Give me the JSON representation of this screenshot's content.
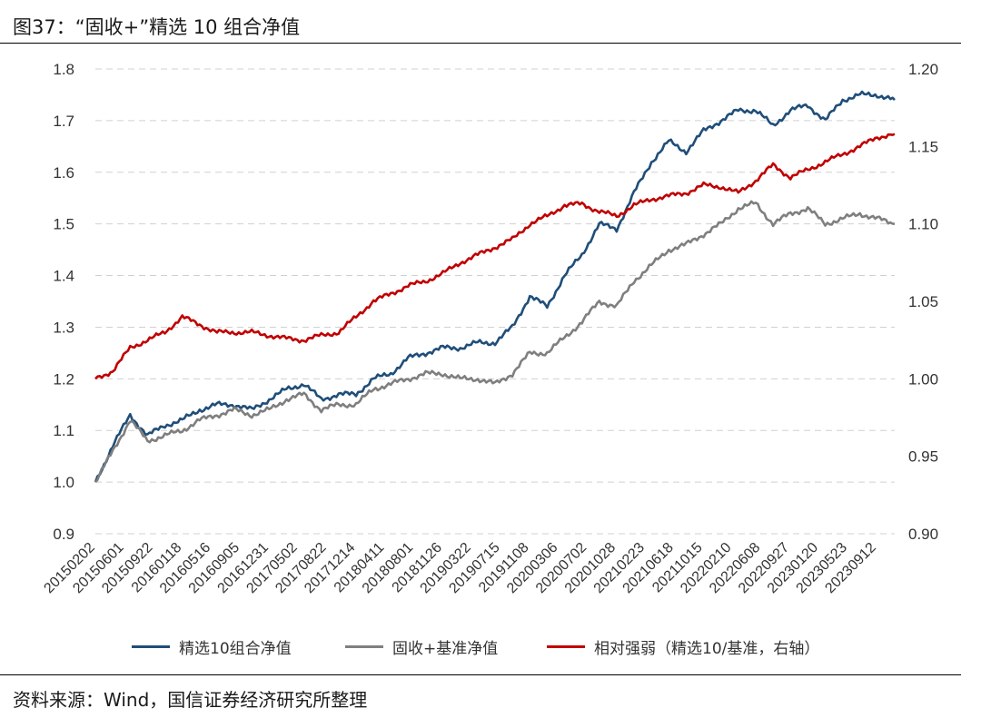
{
  "title": "图37：“固收+”精选 10 组合净值",
  "source": "资料来源：Wind，国信证券经济研究所整理",
  "chart_data": {
    "type": "line",
    "left_axis": {
      "ylim": [
        0.9,
        1.8
      ],
      "ticks": [
        "0.9",
        "1.0",
        "1.1",
        "1.2",
        "1.3",
        "1.4",
        "1.5",
        "1.6",
        "1.7",
        "1.8"
      ]
    },
    "right_axis": {
      "ylim": [
        0.9,
        1.2
      ],
      "ticks": [
        "0.90",
        "0.95",
        "1.00",
        "1.05",
        "1.10",
        "1.15",
        "1.20"
      ]
    },
    "grid": "horizontal dashed",
    "legend_position": "bottom",
    "x_tick_labels": [
      "20150202",
      "20150601",
      "20150922",
      "20160118",
      "20160516",
      "20160905",
      "20161231",
      "20170502",
      "20170822",
      "20171214",
      "20180411",
      "20180801",
      "20181126",
      "20190322",
      "20190715",
      "20191108",
      "20200306",
      "20200702",
      "20201028",
      "20210223",
      "20210618",
      "20211015",
      "20220210",
      "20220608",
      "20220927",
      "20230120",
      "20230523",
      "20230912"
    ],
    "series": [
      {
        "name": "精选10组合净值",
        "axis": "left",
        "color": "#1f4e79",
        "values": [
          1.0,
          1.07,
          1.13,
          1.09,
          1.11,
          1.12,
          1.14,
          1.15,
          1.15,
          1.14,
          1.16,
          1.18,
          1.19,
          1.16,
          1.17,
          1.17,
          1.2,
          1.21,
          1.24,
          1.25,
          1.26,
          1.26,
          1.27,
          1.27,
          1.3,
          1.36,
          1.34,
          1.4,
          1.44,
          1.5,
          1.49,
          1.56,
          1.62,
          1.66,
          1.64,
          1.68,
          1.7,
          1.72,
          1.72,
          1.69,
          1.72,
          1.73,
          1.7,
          1.74,
          1.75,
          1.75,
          1.74
        ]
      },
      {
        "name": "固收+基准净值",
        "axis": "left",
        "color": "#7f7f7f",
        "values": [
          1.0,
          1.06,
          1.12,
          1.08,
          1.09,
          1.1,
          1.12,
          1.13,
          1.14,
          1.13,
          1.14,
          1.16,
          1.17,
          1.14,
          1.15,
          1.15,
          1.18,
          1.19,
          1.2,
          1.21,
          1.21,
          1.2,
          1.2,
          1.19,
          1.21,
          1.25,
          1.25,
          1.28,
          1.31,
          1.35,
          1.34,
          1.39,
          1.42,
          1.45,
          1.46,
          1.48,
          1.5,
          1.53,
          1.54,
          1.5,
          1.52,
          1.53,
          1.5,
          1.51,
          1.52,
          1.51,
          1.5
        ]
      },
      {
        "name": "相对强弱（精选10/基准，右轴）",
        "axis": "right",
        "color": "#c00000",
        "values": [
          1.0,
          1.005,
          1.02,
          1.025,
          1.03,
          1.04,
          1.035,
          1.03,
          1.03,
          1.03,
          1.028,
          1.026,
          1.025,
          1.028,
          1.03,
          1.04,
          1.05,
          1.055,
          1.06,
          1.063,
          1.068,
          1.075,
          1.08,
          1.085,
          1.09,
          1.1,
          1.105,
          1.112,
          1.113,
          1.108,
          1.105,
          1.112,
          1.116,
          1.118,
          1.12,
          1.125,
          1.124,
          1.12,
          1.128,
          1.138,
          1.13,
          1.135,
          1.14,
          1.145,
          1.15,
          1.156,
          1.158
        ]
      }
    ]
  }
}
